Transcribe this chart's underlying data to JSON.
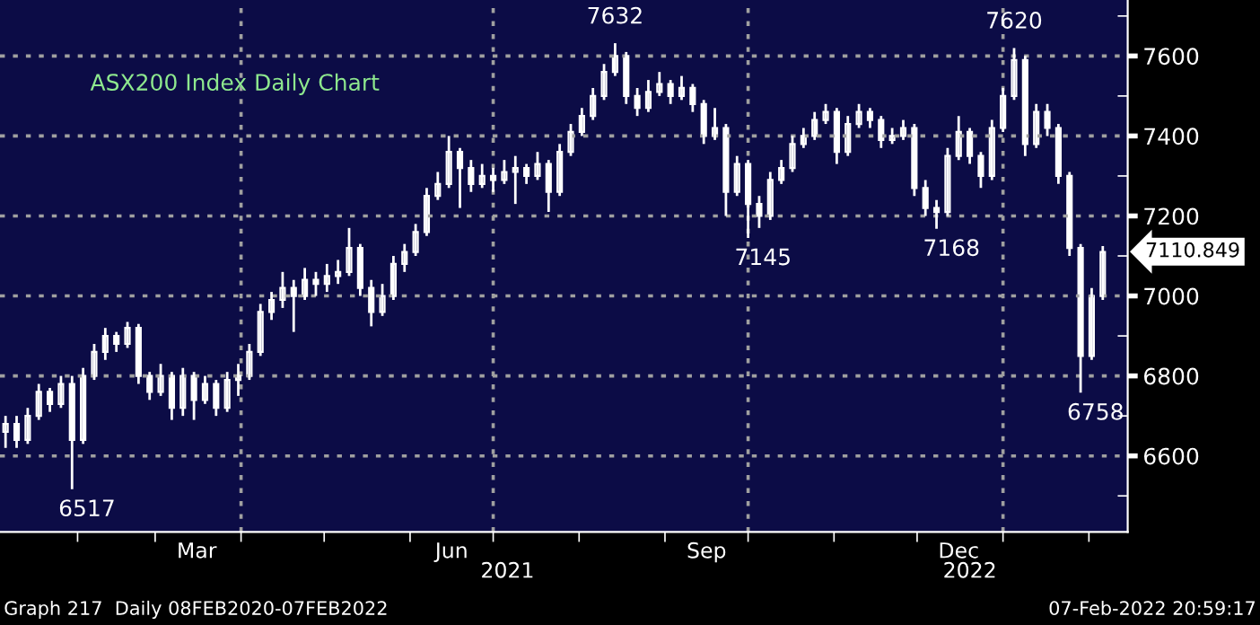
{
  "chart_data": {
    "type": "candlestick",
    "title": "ASX200 Index Daily Chart",
    "x": [
      "2021-01-06",
      "2021-01-10",
      "2021-01-14",
      "2021-01-18",
      "2021-01-22",
      "2021-01-26",
      "2021-01-30",
      "2021-02-03",
      "2021-02-07",
      "2021-02-11",
      "2021-02-15",
      "2021-02-19",
      "2021-02-23",
      "2021-02-27",
      "2021-03-03",
      "2021-03-07",
      "2021-03-11",
      "2021-03-15",
      "2021-03-19",
      "2021-03-23",
      "2021-03-27",
      "2021-03-31",
      "2021-04-04",
      "2021-04-08",
      "2021-04-12",
      "2021-04-16",
      "2021-04-20",
      "2021-04-24",
      "2021-04-28",
      "2021-05-02",
      "2021-05-06",
      "2021-05-10",
      "2021-05-14",
      "2021-05-18",
      "2021-05-22",
      "2021-05-26",
      "2021-05-30",
      "2021-06-03",
      "2021-06-07",
      "2021-06-11",
      "2021-06-15",
      "2021-06-19",
      "2021-06-23",
      "2021-06-27",
      "2021-07-01",
      "2021-07-05",
      "2021-07-09",
      "2021-07-13",
      "2021-07-17",
      "2021-07-21",
      "2021-07-25",
      "2021-07-29",
      "2021-08-02",
      "2021-08-06",
      "2021-08-10",
      "2021-08-14",
      "2021-08-18",
      "2021-08-22",
      "2021-08-26",
      "2021-08-30",
      "2021-09-03",
      "2021-09-07",
      "2021-09-11",
      "2021-09-15",
      "2021-09-19",
      "2021-09-23",
      "2021-09-27",
      "2021-10-01",
      "2021-10-05",
      "2021-10-09",
      "2021-10-13",
      "2021-10-17",
      "2021-10-21",
      "2021-10-25",
      "2021-10-29",
      "2021-11-02",
      "2021-11-06",
      "2021-11-10",
      "2021-11-14",
      "2021-11-18",
      "2021-11-22",
      "2021-11-26",
      "2021-11-30",
      "2021-12-04",
      "2021-12-08",
      "2021-12-12",
      "2021-12-16",
      "2021-12-20",
      "2021-12-24",
      "2021-12-28",
      "2022-01-01",
      "2022-01-05",
      "2022-01-09",
      "2022-01-13",
      "2022-01-17",
      "2022-01-21",
      "2022-01-25",
      "2022-01-29",
      "2022-02-02",
      "2022-02-06"
    ],
    "ohlc": [
      [
        6660,
        6700,
        6620,
        6680
      ],
      [
        6680,
        6700,
        6620,
        6640
      ],
      [
        6640,
        6720,
        6630,
        6700
      ],
      [
        6700,
        6780,
        6690,
        6760
      ],
      [
        6760,
        6770,
        6710,
        6730
      ],
      [
        6730,
        6800,
        6720,
        6780
      ],
      [
        6780,
        6800,
        6517,
        6640
      ],
      [
        6640,
        6820,
        6630,
        6800
      ],
      [
        6800,
        6880,
        6790,
        6860
      ],
      [
        6860,
        6920,
        6840,
        6900
      ],
      [
        6900,
        6910,
        6860,
        6880
      ],
      [
        6880,
        6935,
        6870,
        6920
      ],
      [
        6920,
        6930,
        6780,
        6800
      ],
      [
        6800,
        6810,
        6740,
        6760
      ],
      [
        6760,
        6830,
        6750,
        6800
      ],
      [
        6800,
        6810,
        6690,
        6720
      ],
      [
        6720,
        6820,
        6700,
        6800
      ],
      [
        6800,
        6810,
        6690,
        6740
      ],
      [
        6740,
        6800,
        6730,
        6780
      ],
      [
        6780,
        6790,
        6700,
        6720
      ],
      [
        6720,
        6810,
        6710,
        6790
      ],
      [
        6790,
        6830,
        6750,
        6800
      ],
      [
        6800,
        6880,
        6790,
        6860
      ],
      [
        6860,
        6980,
        6850,
        6960
      ],
      [
        6960,
        7010,
        6940,
        6990
      ],
      [
        6990,
        7060,
        6970,
        7020
      ],
      [
        7020,
        7040,
        6910,
        7000
      ],
      [
        7000,
        7070,
        6990,
        7040
      ],
      [
        7040,
        7060,
        7000,
        7030
      ],
      [
        7030,
        7080,
        7010,
        7050
      ],
      [
        7050,
        7090,
        7030,
        7060
      ],
      [
        7060,
        7170,
        7050,
        7120
      ],
      [
        7120,
        7130,
        7000,
        7020
      ],
      [
        7020,
        7040,
        6924,
        6960
      ],
      [
        6960,
        7030,
        6950,
        7000
      ],
      [
        7000,
        7100,
        6990,
        7080
      ],
      [
        7080,
        7130,
        7060,
        7110
      ],
      [
        7110,
        7180,
        7100,
        7160
      ],
      [
        7160,
        7270,
        7150,
        7250
      ],
      [
        7250,
        7310,
        7240,
        7280
      ],
      [
        7280,
        7400,
        7270,
        7360
      ],
      [
        7360,
        7370,
        7220,
        7320
      ],
      [
        7320,
        7340,
        7260,
        7280
      ],
      [
        7280,
        7330,
        7270,
        7300
      ],
      [
        7300,
        7320,
        7260,
        7290
      ],
      [
        7290,
        7340,
        7280,
        7310
      ],
      [
        7310,
        7350,
        7230,
        7320
      ],
      [
        7320,
        7330,
        7280,
        7300
      ],
      [
        7300,
        7360,
        7290,
        7330
      ],
      [
        7330,
        7340,
        7210,
        7260
      ],
      [
        7260,
        7380,
        7250,
        7360
      ],
      [
        7360,
        7430,
        7350,
        7410
      ],
      [
        7410,
        7470,
        7400,
        7450
      ],
      [
        7450,
        7520,
        7440,
        7500
      ],
      [
        7500,
        7580,
        7490,
        7560
      ],
      [
        7560,
        7632,
        7550,
        7600
      ],
      [
        7600,
        7610,
        7480,
        7500
      ],
      [
        7500,
        7520,
        7450,
        7470
      ],
      [
        7470,
        7540,
        7460,
        7510
      ],
      [
        7510,
        7560,
        7500,
        7530
      ],
      [
        7530,
        7540,
        7480,
        7500
      ],
      [
        7500,
        7550,
        7490,
        7520
      ],
      [
        7520,
        7530,
        7460,
        7480
      ],
      [
        7480,
        7490,
        7380,
        7400
      ],
      [
        7400,
        7470,
        7390,
        7420
      ],
      [
        7420,
        7430,
        7200,
        7260
      ],
      [
        7260,
        7350,
        7250,
        7330
      ],
      [
        7330,
        7340,
        7145,
        7230
      ],
      [
        7230,
        7250,
        7170,
        7200
      ],
      [
        7200,
        7310,
        7190,
        7290
      ],
      [
        7290,
        7340,
        7280,
        7320
      ],
      [
        7320,
        7400,
        7310,
        7380
      ],
      [
        7380,
        7420,
        7370,
        7400
      ],
      [
        7400,
        7460,
        7390,
        7440
      ],
      [
        7440,
        7480,
        7430,
        7460
      ],
      [
        7460,
        7470,
        7330,
        7360
      ],
      [
        7360,
        7450,
        7350,
        7430
      ],
      [
        7430,
        7480,
        7420,
        7460
      ],
      [
        7460,
        7470,
        7420,
        7440
      ],
      [
        7440,
        7450,
        7370,
        7390
      ],
      [
        7390,
        7420,
        7380,
        7400
      ],
      [
        7400,
        7440,
        7390,
        7420
      ],
      [
        7420,
        7430,
        7250,
        7270
      ],
      [
        7270,
        7290,
        7200,
        7220
      ],
      [
        7220,
        7240,
        7168,
        7210
      ],
      [
        7210,
        7370,
        7200,
        7350
      ],
      [
        7350,
        7450,
        7340,
        7410
      ],
      [
        7410,
        7420,
        7330,
        7350
      ],
      [
        7350,
        7360,
        7270,
        7300
      ],
      [
        7300,
        7440,
        7290,
        7420
      ],
      [
        7420,
        7520,
        7410,
        7500
      ],
      [
        7500,
        7620,
        7490,
        7590
      ],
      [
        7590,
        7600,
        7350,
        7380
      ],
      [
        7380,
        7480,
        7370,
        7460
      ],
      [
        7460,
        7480,
        7400,
        7420
      ],
      [
        7420,
        7430,
        7280,
        7300
      ],
      [
        7300,
        7310,
        7100,
        7120
      ],
      [
        7120,
        7130,
        6758,
        6850
      ],
      [
        6850,
        7020,
        6840,
        7000
      ],
      [
        7000,
        7125,
        6990,
        7110
      ]
    ],
    "color": "#ffffff",
    "xlim": [
      "2021-01-04",
      "2022-02-15"
    ],
    "xticks": [
      {
        "value": "2021-02-01",
        "label": null
      },
      {
        "value": "2021-03-01",
        "label": null
      },
      {
        "value": "2021-03-16",
        "label": "Mar"
      },
      {
        "value": "2021-04-01",
        "label": null
      },
      {
        "value": "2021-05-01",
        "label": null
      },
      {
        "value": "2021-06-01",
        "label": null
      },
      {
        "value": "2021-06-16",
        "label": "Jun"
      },
      {
        "value": "2021-07-01",
        "label": null
      },
      {
        "value": "2021-08-01",
        "label": null
      },
      {
        "value": "2021-09-01",
        "label": null
      },
      {
        "value": "2021-09-16",
        "label": "Sep"
      },
      {
        "value": "2021-10-01",
        "label": null
      },
      {
        "value": "2021-11-01",
        "label": null
      },
      {
        "value": "2021-12-01",
        "label": null
      },
      {
        "value": "2021-12-16",
        "label": "Dec"
      },
      {
        "value": "2022-01-01",
        "label": null
      },
      {
        "value": "2022-02-01",
        "label": null
      }
    ],
    "ylim": [
      6410,
      7740
    ],
    "yticks": [
      {
        "value": 6500,
        "label": null
      },
      6600,
      {
        "value": 6700,
        "label": null
      },
      6800,
      {
        "value": 6900,
        "label": null
      },
      7000,
      {
        "value": 7100,
        "label": null
      },
      7200,
      {
        "value": 7300,
        "label": null
      },
      7400,
      {
        "value": 7500,
        "label": null
      },
      7600,
      {
        "value": 7700,
        "label": null
      }
    ],
    "grid": "y",
    "ref_lines": [
      {
        "axis": "x",
        "value": "2021-04-01",
        "color": "#a0a0a0",
        "line_style": "dotted"
      },
      {
        "axis": "x",
        "value": "2021-07-01",
        "color": "#a0a0a0",
        "line_style": "dotted"
      },
      {
        "axis": "x",
        "value": "2021-10-01",
        "color": "#a0a0a0",
        "line_style": "dotted"
      },
      {
        "axis": "x",
        "value": "2022-01-01",
        "color": "#a0a0a0",
        "line_style": "dotted"
      }
    ],
    "annotations": [
      {
        "text": "6517",
        "x": "2021-01-30",
        "y": 6517
      },
      {
        "text": "7632",
        "x": "2021-08-14",
        "y": 7632
      },
      {
        "text": "7145",
        "x": "2021-10-01",
        "y": 7145
      },
      {
        "text": "7168",
        "x": "2021-12-08",
        "y": 7168
      },
      {
        "text": "7620",
        "x": "2022-01-05",
        "y": 7620
      },
      {
        "text": "6758",
        "x": "2022-01-29",
        "y": 6758
      },
      {
        "text": "7110.849",
        "x": "2022-02-06",
        "y": 7110.849
      },
      "Graph 217  Daily 08FEB2020-07FEB2022",
      "2021",
      "2022",
      "07-Feb-2022 20:59:17"
    ]
  }
}
